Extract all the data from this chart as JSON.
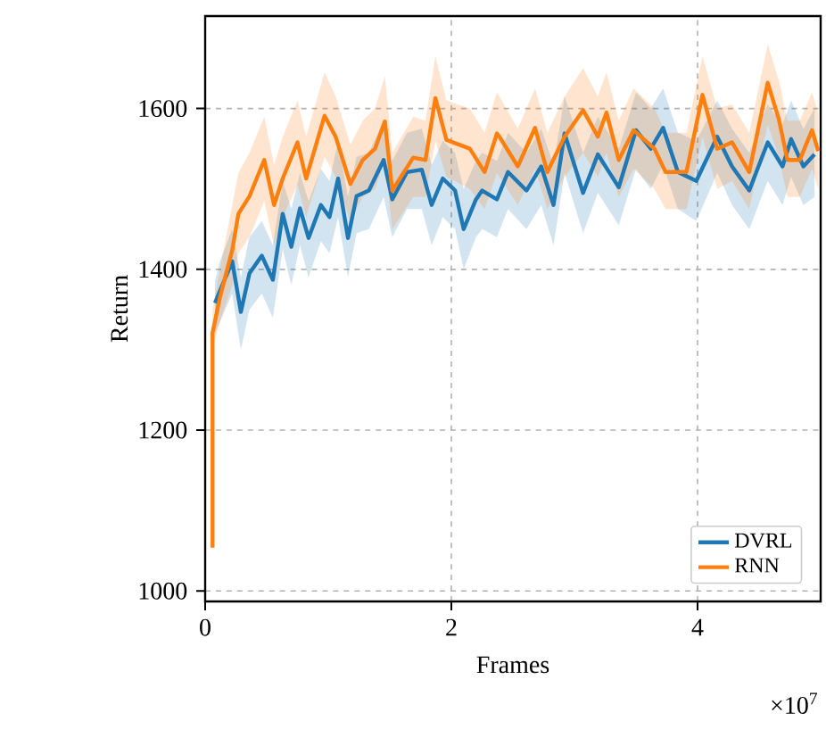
{
  "chart_data": {
    "type": "line",
    "xlabel": "Frames",
    "ylabel": "Return",
    "annotations": [
      "×10$^{7}$"
    ],
    "xlim": [
      0,
      5
    ],
    "ylim": [
      987,
      1715
    ],
    "xticks": [
      0,
      2,
      4
    ],
    "yticks": [
      1000,
      1200,
      1400,
      1600
    ],
    "grid": true,
    "legend": "bottom right",
    "series": [
      {
        "name": "DVRL",
        "color": "#1f77b4",
        "x": [
          0.08,
          0.12,
          0.22,
          0.29,
          0.36,
          0.46,
          0.55,
          0.63,
          0.7,
          0.77,
          0.84,
          0.94,
          1.01,
          1.08,
          1.16,
          1.23,
          1.33,
          1.45,
          1.52,
          1.64,
          1.76,
          1.84,
          1.93,
          2.03,
          2.1,
          2.2,
          2.25,
          2.37,
          2.46,
          2.61,
          2.73,
          2.83,
          2.92,
          3.07,
          3.19,
          3.36,
          3.5,
          3.62,
          3.72,
          3.84,
          3.99,
          4.16,
          4.28,
          4.42,
          4.57,
          4.69,
          4.76,
          4.86,
          4.95
        ],
        "values": [
          1358,
          1373,
          1410,
          1347,
          1395,
          1417,
          1387,
          1469,
          1428,
          1476,
          1439,
          1480,
          1465,
          1513,
          1439,
          1491,
          1498,
          1536,
          1487,
          1521,
          1524,
          1480,
          1513,
          1498,
          1450,
          1487,
          1498,
          1487,
          1521,
          1498,
          1528,
          1480,
          1569,
          1495,
          1543,
          1502,
          1573,
          1550,
          1576,
          1521,
          1510,
          1565,
          1528,
          1498,
          1558,
          1528,
          1562,
          1528,
          1543
        ],
        "upper": [
          1385,
          1410,
          1450,
          1390,
          1440,
          1460,
          1430,
          1510,
          1475,
          1520,
          1485,
          1525,
          1510,
          1560,
          1490,
          1540,
          1545,
          1585,
          1535,
          1570,
          1575,
          1530,
          1560,
          1545,
          1500,
          1535,
          1545,
          1535,
          1570,
          1545,
          1575,
          1530,
          1615,
          1545,
          1590,
          1550,
          1620,
          1600,
          1625,
          1570,
          1560,
          1610,
          1575,
          1545,
          1605,
          1580,
          1610,
          1575,
          1600
        ],
        "lower": [
          1320,
          1335,
          1370,
          1300,
          1350,
          1370,
          1340,
          1425,
          1380,
          1430,
          1390,
          1435,
          1420,
          1465,
          1390,
          1445,
          1450,
          1490,
          1440,
          1475,
          1475,
          1430,
          1465,
          1450,
          1400,
          1440,
          1450,
          1440,
          1475,
          1450,
          1480,
          1430,
          1520,
          1445,
          1495,
          1455,
          1525,
          1500,
          1530,
          1475,
          1460,
          1520,
          1480,
          1450,
          1510,
          1480,
          1515,
          1480,
          1490
        ]
      },
      {
        "name": "RNN",
        "color": "#ff7f0e",
        "x": [
          0.06,
          0.06,
          0.12,
          0.22,
          0.27,
          0.36,
          0.48,
          0.56,
          0.63,
          0.75,
          0.82,
          0.97,
          1.06,
          1.18,
          1.28,
          1.38,
          1.46,
          1.52,
          1.69,
          1.79,
          1.87,
          1.96,
          2.15,
          2.27,
          2.37,
          2.39,
          2.54,
          2.68,
          2.78,
          2.92,
          3.07,
          3.19,
          3.26,
          3.36,
          3.48,
          3.65,
          3.74,
          3.91,
          4.04,
          4.16,
          4.28,
          4.42,
          4.57,
          4.66,
          4.73,
          4.83,
          4.93,
          4.98
        ],
        "values": [
          1054,
          1321,
          1365,
          1424,
          1469,
          1491,
          1536,
          1480,
          1513,
          1558,
          1513,
          1591,
          1565,
          1506,
          1536,
          1550,
          1584,
          1498,
          1539,
          1536,
          1613,
          1561,
          1550,
          1521,
          1569,
          1565,
          1528,
          1576,
          1521,
          1565,
          1598,
          1565,
          1595,
          1536,
          1573,
          1550,
          1521,
          1521,
          1617,
          1550,
          1558,
          1521,
          1632,
          1587,
          1536,
          1536,
          1573,
          1547
        ],
        "upper": [
          1060,
          1350,
          1400,
          1480,
          1520,
          1545,
          1590,
          1530,
          1565,
          1610,
          1565,
          1645,
          1615,
          1555,
          1585,
          1600,
          1640,
          1545,
          1590,
          1585,
          1665,
          1610,
          1600,
          1570,
          1620,
          1615,
          1575,
          1625,
          1570,
          1615,
          1650,
          1615,
          1645,
          1585,
          1625,
          1600,
          1570,
          1570,
          1665,
          1600,
          1605,
          1570,
          1680,
          1635,
          1585,
          1585,
          1620,
          1595
        ],
        "lower": [
          1050,
          1300,
          1335,
          1380,
          1420,
          1440,
          1485,
          1430,
          1465,
          1505,
          1465,
          1540,
          1515,
          1460,
          1490,
          1500,
          1535,
          1450,
          1490,
          1490,
          1560,
          1515,
          1500,
          1475,
          1520,
          1515,
          1480,
          1525,
          1475,
          1515,
          1545,
          1515,
          1545,
          1490,
          1525,
          1500,
          1475,
          1475,
          1565,
          1500,
          1510,
          1475,
          1580,
          1540,
          1490,
          1490,
          1525,
          1500
        ]
      }
    ]
  }
}
